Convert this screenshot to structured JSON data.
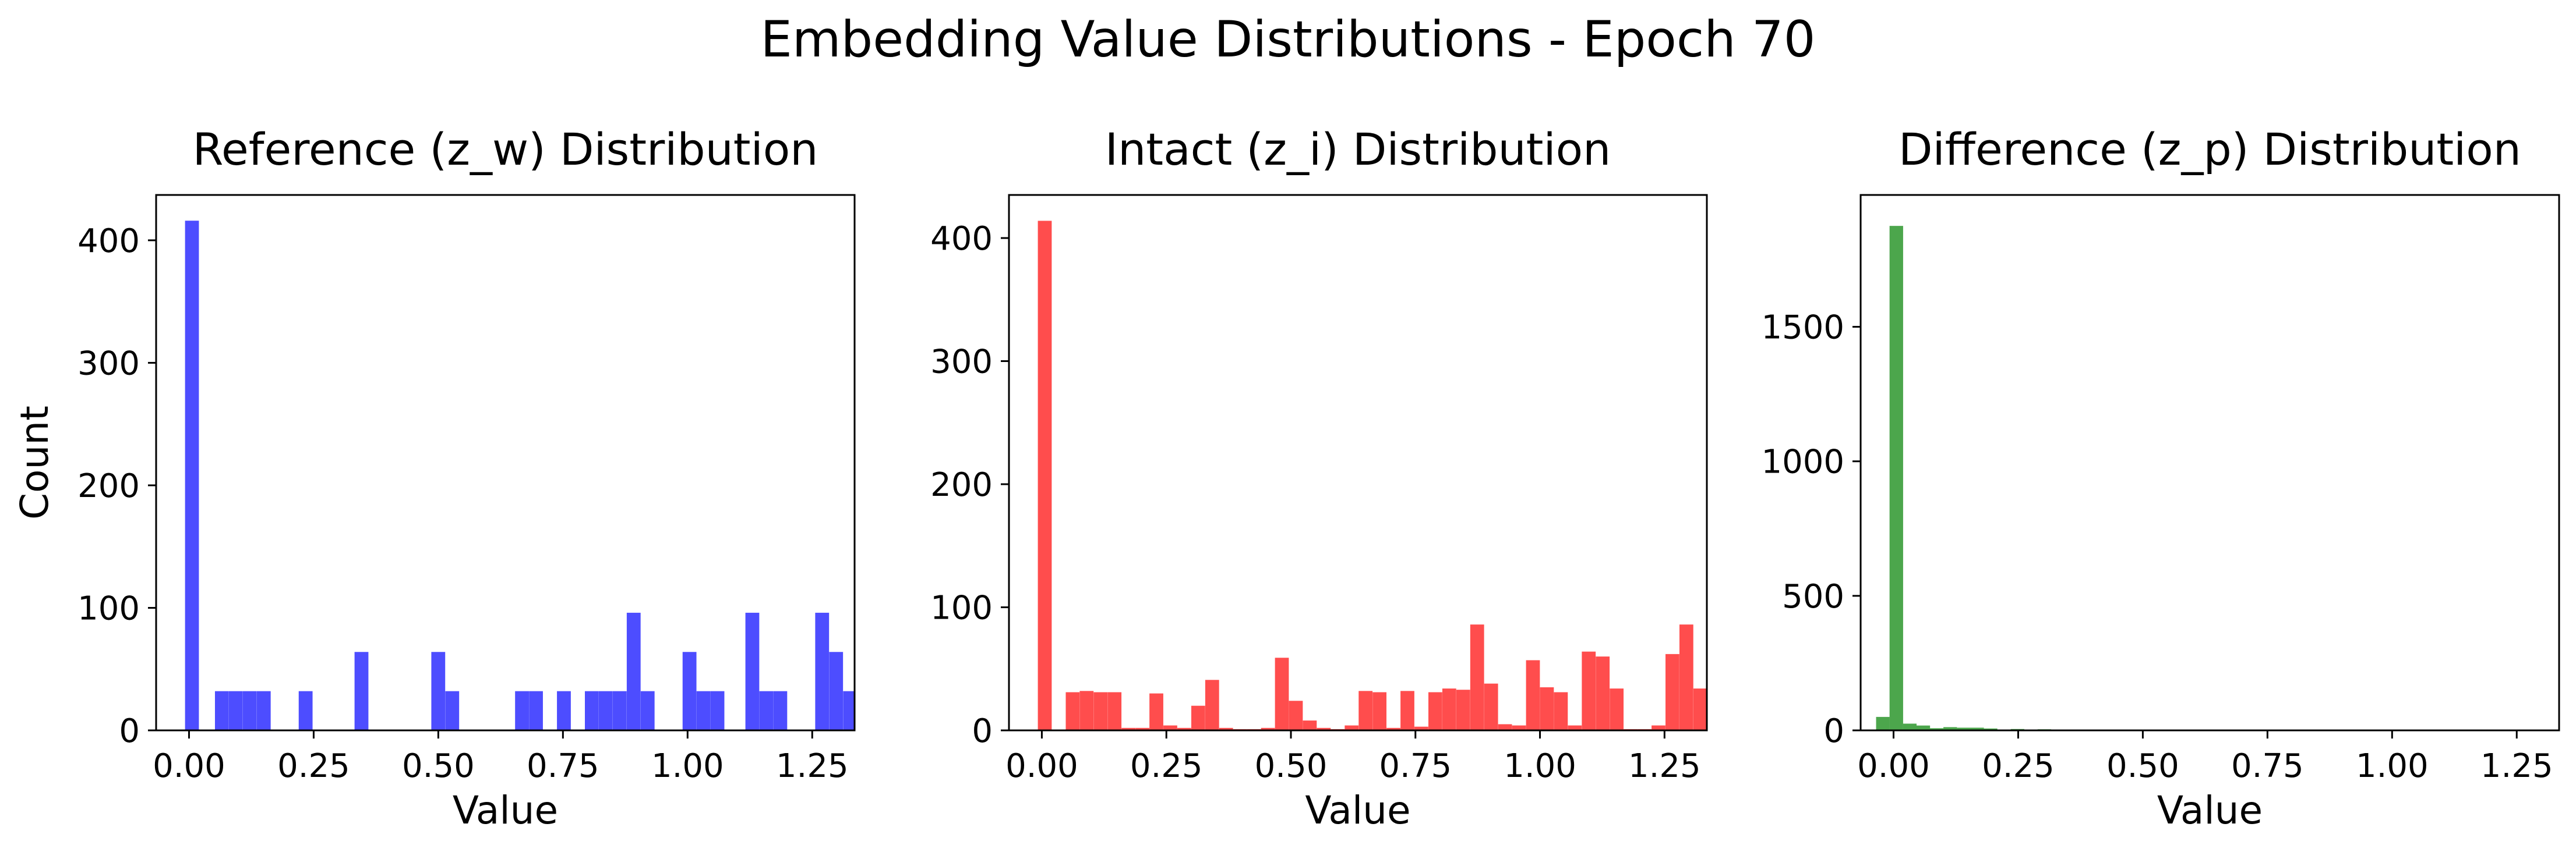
{
  "figure": {
    "title": "Embedding Value Distributions - Epoch 70"
  },
  "chart_data": [
    {
      "type": "bar",
      "title": "Reference (z_w) Distribution",
      "xlabel": "Value",
      "ylabel": "Count",
      "color": "#4d4dff",
      "xlim": [
        -0.066,
        1.335
      ],
      "ylim": [
        0,
        437
      ],
      "xticks": [
        0.0,
        0.25,
        0.5,
        0.75,
        1.0,
        1.25
      ],
      "xtick_labels": [
        "0.00",
        "0.25",
        "0.50",
        "0.75",
        "1.00",
        "1.25"
      ],
      "yticks": [
        0,
        100,
        200,
        300,
        400
      ],
      "ytick_labels": [
        "0",
        "100",
        "200",
        "300",
        "400"
      ],
      "bin_width": 0.0278,
      "bins": [
        [
          -0.008,
          416
        ],
        [
          0.052,
          32
        ],
        [
          0.08,
          32
        ],
        [
          0.108,
          32
        ],
        [
          0.136,
          32
        ],
        [
          0.22,
          32
        ],
        [
          0.332,
          64
        ],
        [
          0.486,
          64
        ],
        [
          0.514,
          32
        ],
        [
          0.654,
          32
        ],
        [
          0.682,
          32
        ],
        [
          0.738,
          32
        ],
        [
          0.794,
          32
        ],
        [
          0.822,
          32
        ],
        [
          0.85,
          32
        ],
        [
          0.878,
          96
        ],
        [
          0.906,
          32
        ],
        [
          0.99,
          64
        ],
        [
          1.018,
          32
        ],
        [
          1.046,
          32
        ],
        [
          1.116,
          96
        ],
        [
          1.144,
          32
        ],
        [
          1.172,
          32
        ],
        [
          1.256,
          96
        ],
        [
          1.284,
          64
        ],
        [
          1.312,
          32
        ]
      ]
    },
    {
      "type": "bar",
      "title": "Intact (z_i) Distribution",
      "xlabel": "Value",
      "ylabel": "",
      "color": "#ff4d4d",
      "xlim": [
        -0.066,
        1.335
      ],
      "ylim": [
        0,
        435
      ],
      "xticks": [
        0.0,
        0.25,
        0.5,
        0.75,
        1.0,
        1.25
      ],
      "xtick_labels": [
        "0.00",
        "0.25",
        "0.50",
        "0.75",
        "1.00",
        "1.25"
      ],
      "yticks": [
        0,
        100,
        200,
        300,
        400
      ],
      "ytick_labels": [
        "0",
        "100",
        "200",
        "300",
        "400"
      ],
      "bin_width": 0.0278,
      "bins": [
        [
          -0.008,
          414
        ],
        [
          0.048,
          31
        ],
        [
          0.076,
          32
        ],
        [
          0.104,
          31
        ],
        [
          0.132,
          31
        ],
        [
          0.16,
          2
        ],
        [
          0.188,
          2
        ],
        [
          0.216,
          30
        ],
        [
          0.244,
          4
        ],
        [
          0.272,
          2
        ],
        [
          0.3,
          20
        ],
        [
          0.328,
          41
        ],
        [
          0.356,
          2
        ],
        [
          0.384,
          1
        ],
        [
          0.412,
          1
        ],
        [
          0.44,
          2
        ],
        [
          0.468,
          59
        ],
        [
          0.496,
          24
        ],
        [
          0.524,
          8
        ],
        [
          0.552,
          2
        ],
        [
          0.58,
          1
        ],
        [
          0.608,
          4
        ],
        [
          0.636,
          32
        ],
        [
          0.664,
          31
        ],
        [
          0.692,
          2
        ],
        [
          0.72,
          32
        ],
        [
          0.748,
          3
        ],
        [
          0.776,
          31
        ],
        [
          0.804,
          34
        ],
        [
          0.832,
          33
        ],
        [
          0.86,
          86
        ],
        [
          0.888,
          38
        ],
        [
          0.916,
          5
        ],
        [
          0.944,
          4
        ],
        [
          0.972,
          57
        ],
        [
          1.0,
          35
        ],
        [
          1.028,
          31
        ],
        [
          1.056,
          4
        ],
        [
          1.084,
          64
        ],
        [
          1.112,
          60
        ],
        [
          1.14,
          34
        ],
        [
          1.168,
          1
        ],
        [
          1.196,
          1
        ],
        [
          1.224,
          4
        ],
        [
          1.252,
          62
        ],
        [
          1.28,
          86
        ],
        [
          1.308,
          34
        ]
      ]
    },
    {
      "type": "bar",
      "title": "Difference (z_p) Distribution",
      "xlabel": "Value",
      "ylabel": "",
      "color": "#4ca64c",
      "xlim": [
        -0.066,
        1.335
      ],
      "ylim": [
        0,
        1990
      ],
      "xticks": [
        0.0,
        0.25,
        0.5,
        0.75,
        1.0,
        1.25
      ],
      "xtick_labels": [
        "0.00",
        "0.25",
        "0.50",
        "0.75",
        "1.00",
        "1.25"
      ],
      "yticks": [
        0,
        500,
        1000,
        1500
      ],
      "ytick_labels": [
        "0",
        "500",
        "1000",
        "1500"
      ],
      "bin_width": 0.0272,
      "bins": [
        [
          -0.035,
          50
        ],
        [
          -0.008,
          1875
        ],
        [
          0.019,
          25
        ],
        [
          0.046,
          18
        ],
        [
          0.073,
          8
        ],
        [
          0.1,
          12
        ],
        [
          0.127,
          10
        ],
        [
          0.154,
          10
        ],
        [
          0.181,
          7
        ],
        [
          0.208,
          3
        ],
        [
          0.235,
          5
        ],
        [
          0.262,
          3
        ],
        [
          0.289,
          4
        ],
        [
          0.316,
          3
        ],
        [
          0.343,
          2
        ],
        [
          0.37,
          2
        ],
        [
          0.397,
          1
        ],
        [
          0.424,
          1
        ],
        [
          0.451,
          1
        ]
      ]
    }
  ]
}
